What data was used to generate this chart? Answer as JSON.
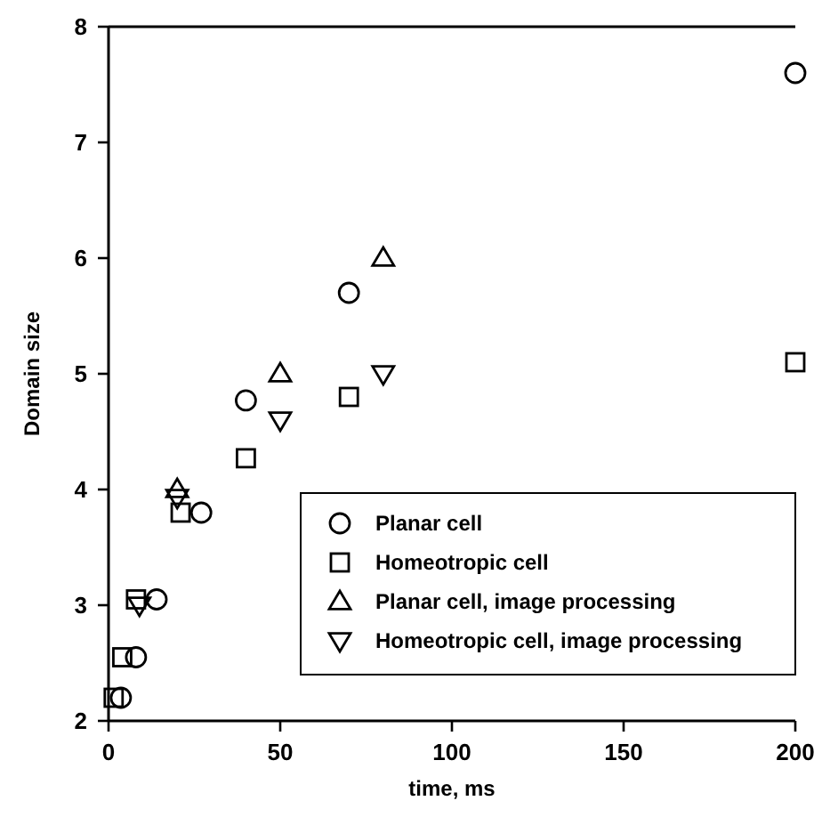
{
  "chart_data": {
    "type": "scatter",
    "xlabel": "time, ms",
    "ylabel": "Domain size",
    "xlim": [
      0,
      200
    ],
    "ylim": [
      2,
      8
    ],
    "xticks": [
      0,
      50,
      100,
      150,
      200
    ],
    "yticks": [
      2,
      3,
      4,
      5,
      6,
      7,
      8
    ],
    "grid": false,
    "legend": "bottom right",
    "series": [
      {
        "name": "Planar cell",
        "color": "#000000",
        "marker": "circle",
        "x": [
          3.6,
          8,
          14,
          27,
          40,
          70,
          200
        ],
        "values": [
          2.2,
          2.55,
          3.05,
          3.8,
          4.77,
          5.7,
          7.6
        ]
      },
      {
        "name": "Homeotropic cell",
        "color": "#000000",
        "marker": "square",
        "x": [
          1.5,
          4,
          8,
          21,
          40,
          70,
          200
        ],
        "values": [
          2.2,
          2.55,
          3.05,
          3.8,
          4.27,
          4.8,
          5.1
        ]
      },
      {
        "name": "Planar cell, image processing",
        "color": "#000000",
        "marker": "triangle",
        "x": [
          20,
          50,
          80
        ],
        "values": [
          4.0,
          5.0,
          6.0
        ]
      },
      {
        "name": "Homeotropic cell, image processing",
        "color": "#000000",
        "marker": "triangle-down",
        "x": [
          9,
          20,
          50,
          80
        ],
        "values": [
          3.0,
          3.93,
          4.6,
          5.0
        ]
      }
    ]
  }
}
